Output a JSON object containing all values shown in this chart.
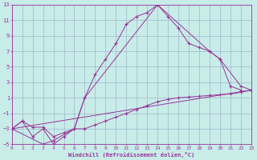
{
  "xlabel": "Windchill (Refroidissement éolien,°C)",
  "background_color": "#c8ece8",
  "grid_color": "#a0b8cc",
  "line_color": "#993399",
  "xlim": [
    0,
    23
  ],
  "ylim": [
    -5,
    13
  ],
  "xticks": [
    0,
    1,
    2,
    3,
    4,
    5,
    6,
    7,
    8,
    9,
    10,
    11,
    12,
    13,
    14,
    15,
    16,
    17,
    18,
    19,
    20,
    21,
    22,
    23
  ],
  "yticks": [
    -5,
    -3,
    -1,
    1,
    3,
    5,
    7,
    9,
    11,
    13
  ],
  "line1_x": [
    0,
    1,
    2,
    3,
    4,
    5,
    6,
    7,
    8,
    9,
    10,
    11,
    12,
    13,
    14,
    15,
    16,
    17,
    18,
    19,
    20,
    22,
    23
  ],
  "line1_y": [
    -3,
    -2,
    -4,
    -3,
    -5,
    -4,
    -3,
    1,
    4,
    6,
    8,
    10.5,
    11.5,
    12,
    13,
    11.5,
    10,
    8,
    7.5,
    7,
    6,
    2.5,
    2
  ],
  "line2_x": [
    0,
    3,
    4,
    6,
    7,
    14,
    19,
    20,
    21,
    22
  ],
  "line2_y": [
    -3,
    -5,
    -4.5,
    -3,
    1,
    13,
    7,
    6,
    2.5,
    2
  ],
  "line3_x": [
    0,
    23
  ],
  "line3_y": [
    -3,
    2
  ],
  "line4_x": [
    0,
    1,
    2,
    3,
    4,
    5,
    6,
    7,
    8,
    9,
    10,
    11,
    12,
    13,
    14,
    15,
    16,
    17,
    18,
    19,
    20,
    21,
    22,
    23
  ],
  "line4_y": [
    -3,
    -2,
    -2.8,
    -2.8,
    -4,
    -3.5,
    -3,
    -3,
    -2.5,
    -2,
    -1.5,
    -1,
    -0.5,
    0,
    0.5,
    0.8,
    1,
    1.1,
    1.2,
    1.3,
    1.4,
    1.5,
    1.7,
    2
  ]
}
